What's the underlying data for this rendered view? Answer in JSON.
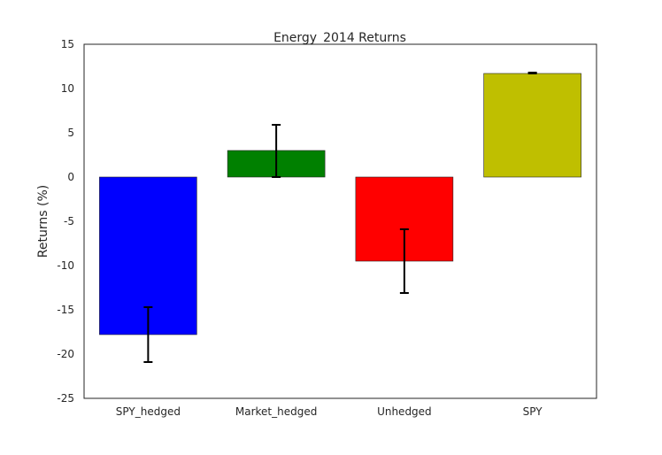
{
  "chart_data": {
    "type": "bar",
    "title": "Energy_2014 Returns",
    "xlabel": "",
    "ylabel": "Returns (%)",
    "ylim": [
      -25,
      15
    ],
    "yticks": [
      "15",
      "10",
      "5",
      "0",
      "-5",
      "-10",
      "-15",
      "-20",
      "-25"
    ],
    "ytick_values": [
      15,
      10,
      5,
      0,
      -5,
      -10,
      -15,
      -20,
      -25
    ],
    "categories": [
      "SPY_hedged",
      "Market_hedged",
      "Unhedged",
      "SPY"
    ],
    "values": [
      -17.8,
      3.0,
      -9.5,
      11.7
    ],
    "error_low": [
      -20.9,
      0.0,
      -13.1,
      11.7
    ],
    "error_high": [
      -14.7,
      5.9,
      -5.9,
      11.8
    ],
    "colors": [
      "#0000ff",
      "#008000",
      "#ff0000",
      "#bfbf00"
    ],
    "grid": false
  }
}
